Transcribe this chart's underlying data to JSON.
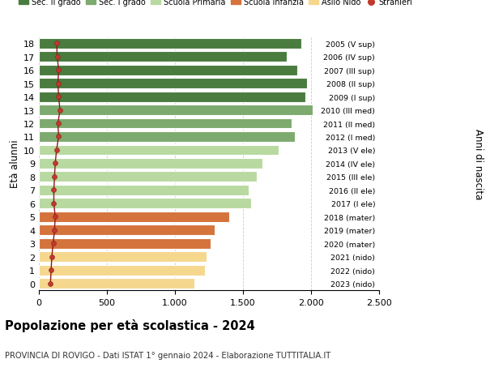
{
  "ages": [
    18,
    17,
    16,
    15,
    14,
    13,
    12,
    11,
    10,
    9,
    8,
    7,
    6,
    5,
    4,
    3,
    2,
    1,
    0
  ],
  "right_labels": [
    "2005 (V sup)",
    "2006 (IV sup)",
    "2007 (III sup)",
    "2008 (II sup)",
    "2009 (I sup)",
    "2010 (III med)",
    "2011 (II med)",
    "2012 (I med)",
    "2013 (V ele)",
    "2014 (IV ele)",
    "2015 (III ele)",
    "2016 (II ele)",
    "2017 (I ele)",
    "2018 (mater)",
    "2019 (mater)",
    "2020 (mater)",
    "2021 (nido)",
    "2022 (nido)",
    "2023 (nido)"
  ],
  "bar_values": [
    1930,
    1820,
    1900,
    1970,
    1960,
    2010,
    1860,
    1880,
    1760,
    1640,
    1600,
    1540,
    1560,
    1400,
    1290,
    1260,
    1230,
    1220,
    1140
  ],
  "stranieri_values": [
    130,
    135,
    145,
    140,
    145,
    155,
    140,
    145,
    130,
    120,
    115,
    110,
    110,
    120,
    115,
    105,
    95,
    90,
    85
  ],
  "bar_colors": [
    "#4a7c3f",
    "#4a7c3f",
    "#4a7c3f",
    "#4a7c3f",
    "#4a7c3f",
    "#7daa6e",
    "#7daa6e",
    "#7daa6e",
    "#b8d9a0",
    "#b8d9a0",
    "#b8d9a0",
    "#b8d9a0",
    "#b8d9a0",
    "#d4733c",
    "#d4733c",
    "#d4733c",
    "#f5d78e",
    "#f5d78e",
    "#f5d78e"
  ],
  "legend_labels": [
    "Sec. II grado",
    "Sec. I grado",
    "Scuola Primaria",
    "Scuola Infanzia",
    "Asilo Nido",
    "Stranieri"
  ],
  "legend_colors": [
    "#4a7c3f",
    "#7daa6e",
    "#b8d9a0",
    "#d4733c",
    "#f5d78e",
    "#c0392b"
  ],
  "title": "Popolazione per età scolastica - 2024",
  "subtitle": "PROVINCIA DI ROVIGO - Dati ISTAT 1° gennaio 2024 - Elaborazione TUTTITALIA.IT",
  "ylabel": "Età alunni",
  "right_ylabel": "Anni di nascita",
  "xlim": [
    0,
    2500
  ],
  "xticks": [
    0,
    500,
    1000,
    1500,
    2000,
    2500
  ],
  "xtick_labels": [
    "0",
    "500",
    "1.000",
    "1.500",
    "2.000",
    "2.500"
  ],
  "bar_height": 0.78,
  "background_color": "#ffffff",
  "grid_color": "#cccccc",
  "stranieri_color": "#c0392b",
  "stranieri_line_color": "#8b1a1a"
}
